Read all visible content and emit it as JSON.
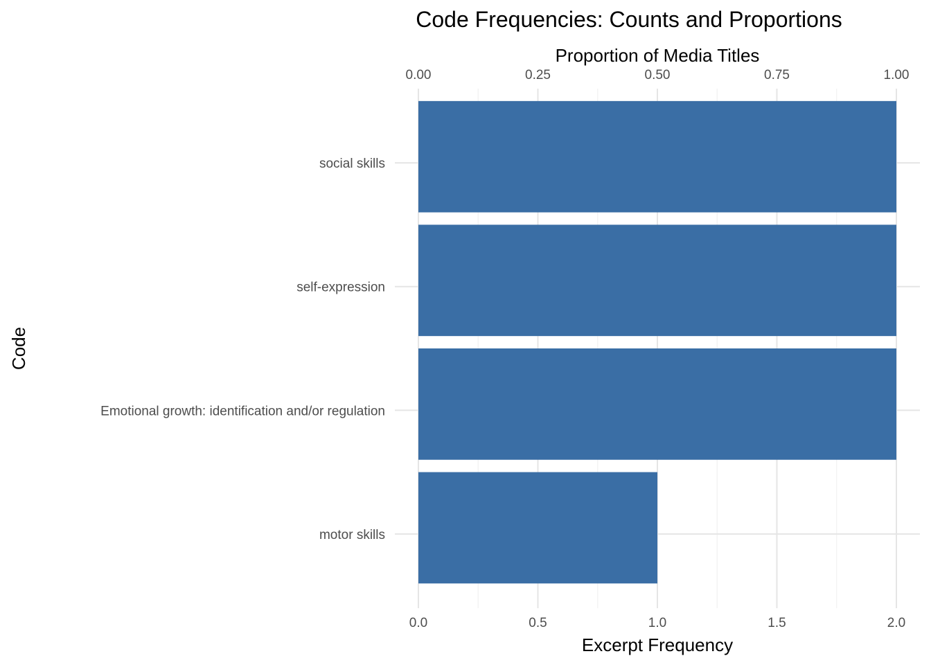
{
  "colors": {
    "bar": "#3a6ea5",
    "grid": "#e5e5e5",
    "tick_text": "#4d4d4d",
    "background": "#ffffff"
  },
  "chart_data": {
    "type": "bar",
    "orientation": "horizontal",
    "title": "Code Frequencies: Counts and Proportions",
    "xlabel": "Excerpt Frequency",
    "x2label": "Proportion of Media Titles",
    "ylabel": "Code",
    "categories": [
      "social skills",
      "self-expression",
      "Emotional growth: identification and/or regulation",
      "motor skills"
    ],
    "values": [
      2,
      2,
      2,
      1
    ],
    "xlim": [
      0,
      2
    ],
    "x_ticks": [
      "0.0",
      "0.5",
      "1.0",
      "1.5",
      "2.0"
    ],
    "x_tick_values": [
      0,
      0.5,
      1.0,
      1.5,
      2.0
    ],
    "x2lim": [
      0,
      1
    ],
    "x2_ticks": [
      "0.00",
      "0.25",
      "0.50",
      "0.75",
      "1.00"
    ],
    "x2_tick_values": [
      0,
      0.25,
      0.5,
      0.75,
      1.0
    ],
    "grid": true,
    "legend": "none"
  }
}
